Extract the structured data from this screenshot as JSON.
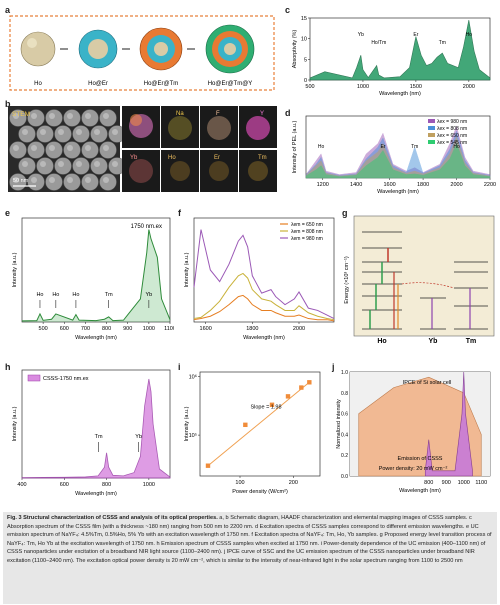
{
  "figure": {
    "a": {
      "label": "a",
      "items": [
        "Ho",
        "Ho@Er",
        "Ho@Er@Tm",
        "Ho@Er@Tm@Y"
      ]
    },
    "b": {
      "label": "b",
      "stem": "STEM",
      "scale": "50 nm",
      "elements": [
        "Na",
        "F",
        "Y",
        "Yb",
        "Ho",
        "Er",
        "Tm"
      ]
    },
    "c": {
      "label": "c",
      "peaks": [
        "Yb",
        "Ho/Tm",
        "Er",
        "Tm",
        "Ho"
      ]
    },
    "d": {
      "label": "d",
      "legend": [
        "λex = 980 nm",
        "λex = 808 nm",
        "λex = 650 nm",
        "λex = 545 nm"
      ],
      "peaks": [
        "Ho",
        "Er",
        "Tm",
        "Ho"
      ]
    },
    "e": {
      "label": "e",
      "annotation": "1750 nm.ex",
      "peaks": [
        "Ho",
        "Ho",
        "Ho",
        "Tm",
        "Yb"
      ]
    },
    "f": {
      "label": "f",
      "legend": [
        "λem = 650 nm",
        "λem = 808 nm",
        "λem = 980 nm"
      ]
    },
    "g": {
      "label": "g",
      "ions": [
        "Ho",
        "Yb",
        "Tm"
      ]
    },
    "h": {
      "label": "h",
      "legend": "CSSS-1750 nm.ex",
      "peaks": [
        "Tm",
        "Yb"
      ]
    },
    "i": {
      "label": "i",
      "slope": "Slope = 1.98"
    },
    "j": {
      "label": "j",
      "ipce": "IPCE of Si solar cell",
      "emission": "Emission of CSSS",
      "power": "Power density: 20 mW cm⁻²"
    }
  },
  "chart_data": [
    {
      "type": "area",
      "panel": "c",
      "xlabel": "Wavelength (nm)",
      "ylabel": "Absorptivity (%)",
      "xlim": [
        500,
        2200
      ],
      "ylim": [
        0,
        15
      ],
      "xticks": [
        "500",
        "1000",
        "1500",
        "2000"
      ],
      "yticks": [
        "0",
        "5",
        "10",
        "15"
      ],
      "x": [
        500,
        640,
        900,
        940,
        980,
        1000,
        1050,
        1130,
        1150,
        1200,
        1350,
        1440,
        1500,
        1550,
        1600,
        1650,
        1700,
        1750,
        1800,
        1900,
        1950,
        2000,
        2050,
        2100,
        2200
      ],
      "values": [
        0.5,
        2.0,
        0.5,
        3.0,
        6.0,
        2.5,
        0.6,
        3.5,
        1.2,
        0.5,
        0.8,
        3.0,
        10.5,
        6.0,
        3.5,
        4.0,
        5.5,
        6.5,
        4.0,
        3.0,
        8.0,
        14.5,
        7.0,
        2.5,
        0.5
      ]
    },
    {
      "type": "line",
      "panel": "d",
      "xlabel": "Wavelength (nm)",
      "ylabel": "Intensity of PEL (a.u.)",
      "xlim": [
        1100,
        2200
      ],
      "xticks": [
        "1200",
        "1400",
        "1600",
        "1800",
        "2000",
        "2200"
      ],
      "x": [
        1100,
        1160,
        1190,
        1220,
        1300,
        1400,
        1460,
        1530,
        1560,
        1620,
        1700,
        1750,
        1800,
        1900,
        1960,
        2000,
        2050,
        2100,
        2200
      ],
      "series": [
        {
          "name": "λex = 980 nm",
          "values": [
            0.5,
            2.5,
            3.5,
            1.0,
            0.5,
            0.8,
            3.5,
            5.0,
            6.5,
            2.0,
            1.0,
            1.5,
            0.8,
            2.0,
            5.0,
            7.5,
            3.0,
            1.0,
            0.5
          ]
        },
        {
          "name": "λex = 808 nm",
          "values": [
            0.5,
            2.0,
            3.0,
            0.8,
            0.4,
            0.6,
            2.8,
            4.5,
            5.8,
            1.8,
            0.8,
            4.5,
            0.7,
            1.8,
            4.2,
            6.8,
            2.6,
            0.8,
            0.4
          ]
        },
        {
          "name": "λex = 650 nm",
          "values": [
            0.4,
            1.8,
            2.5,
            0.7,
            0.3,
            0.5,
            2.5,
            3.8,
            5.0,
            1.5,
            0.7,
            1.0,
            0.6,
            1.5,
            3.6,
            6.0,
            2.2,
            0.7,
            0.3
          ]
        },
        {
          "name": "λex = 545 nm",
          "values": [
            0.3,
            1.2,
            1.8,
            0.5,
            0.2,
            0.4,
            1.8,
            3.0,
            4.0,
            1.2,
            0.5,
            0.6,
            0.4,
            1.2,
            2.8,
            5.0,
            1.8,
            0.5,
            0.2
          ]
        }
      ]
    },
    {
      "type": "line",
      "panel": "e",
      "xlabel": "Wavelength (nm)",
      "ylabel": "Intensity (a.u.)",
      "xlim": [
        400,
        1100
      ],
      "xticks": [
        "500",
        "600",
        "700",
        "800",
        "900",
        "1000",
        "1100"
      ],
      "x": [
        400,
        470,
        485,
        500,
        540,
        560,
        640,
        655,
        670,
        750,
        790,
        810,
        830,
        880,
        960,
        990,
        1000,
        1010,
        1040,
        1060,
        1100
      ],
      "values": [
        0.5,
        0.6,
        3.5,
        0.7,
        1.2,
        3.5,
        0.8,
        3.2,
        0.8,
        0.6,
        1.2,
        2.2,
        0.6,
        0.8,
        10,
        30,
        40,
        36,
        28,
        10,
        1
      ]
    },
    {
      "type": "line",
      "panel": "f",
      "xlabel": "Wavelength (nm)",
      "ylabel": "Intensity (a.u.)",
      "xlim": [
        1550,
        2150
      ],
      "xticks": [
        "1600",
        "1800",
        "2000"
      ],
      "x": [
        1550,
        1580,
        1620,
        1660,
        1700,
        1740,
        1760,
        1780,
        1800,
        1840,
        1880,
        1900,
        1940,
        1980,
        2000,
        2040,
        2080,
        2120,
        2150
      ],
      "series": [
        {
          "name": "λem = 650 nm",
          "values": [
            0.2,
            0.3,
            0.5,
            0.9,
            1.5,
            2.2,
            2.3,
            2.0,
            1.5,
            1.0,
            1.0,
            0.8,
            0.5,
            0.5,
            0.6,
            0.3,
            0.2,
            0.2,
            0.1
          ]
        },
        {
          "name": "λem = 808 nm",
          "values": [
            0.3,
            0.4,
            1.0,
            1.8,
            3.0,
            4.0,
            4.2,
            3.8,
            2.8,
            2.0,
            1.8,
            1.5,
            1.0,
            1.0,
            1.4,
            0.8,
            0.5,
            0.3,
            0.2
          ]
        },
        {
          "name": "λem = 980 nm",
          "values": [
            3.0,
            8.0,
            4.5,
            3.5,
            5.0,
            7.0,
            7.5,
            6.5,
            4.0,
            2.5,
            2.8,
            2.2,
            1.5,
            2.0,
            2.6,
            1.2,
            1.0,
            0.6,
            0.3
          ]
        }
      ]
    },
    {
      "type": "area",
      "panel": "h",
      "xlabel": "Wavelength (nm)",
      "ylabel": "Intensity (a.u.)",
      "xlim": [
        400,
        1100
      ],
      "xticks": [
        "400",
        "600",
        "800",
        "1000"
      ],
      "x": [
        400,
        500,
        600,
        700,
        760,
        790,
        800,
        810,
        830,
        880,
        930,
        960,
        980,
        1000,
        1010,
        1020,
        1050,
        1100
      ],
      "values": [
        0.2,
        0.3,
        0.4,
        0.6,
        1.2,
        6.0,
        14,
        6.0,
        1.5,
        1.2,
        3.0,
        12,
        40,
        55,
        48,
        30,
        5,
        0.5
      ]
    },
    {
      "type": "scatter",
      "panel": "i",
      "xlabel": "Power density (W/cm²)",
      "ylabel": "Intensity (a.u.)",
      "xlim": [
        25,
        250
      ],
      "yscale": "log",
      "xticks": [
        "100",
        "200"
      ],
      "yticks": [
        "10⁵",
        "10⁶"
      ],
      "x": [
        40,
        110,
        160,
        190,
        215,
        230
      ],
      "values": [
        30000,
        150000,
        330000,
        460000,
        650000,
        800000
      ]
    },
    {
      "type": "area",
      "panel": "j",
      "xlabel": "Wavelength (nm)",
      "ylabel": "Normalized intensity",
      "xticks": [
        "800",
        "900",
        "1000",
        "1100"
      ],
      "yticks": [
        "0.0",
        "0.2",
        "0.4",
        "0.6",
        "0.8",
        "1.0"
      ],
      "series": [
        {
          "name": "IPCE of Si solar cell",
          "x": [
            400,
            600,
            800,
            1000,
            1100
          ],
          "values": [
            0.6,
            0.85,
            0.95,
            0.8,
            0.4
          ]
        },
        {
          "name": "Emission of CSSS",
          "x": [
            780,
            800,
            820,
            950,
            990,
            1000,
            1010,
            1050
          ],
          "values": [
            0.05,
            0.35,
            0.05,
            0.05,
            0.6,
            1.0,
            0.6,
            0.05
          ]
        }
      ]
    }
  ],
  "caption": {
    "lead": "Fig. 3 Structural characterization of CSSS and analysis of its optical properties.",
    "body": " a, b Schematic diagram, HAADF characterization and elemental mapping images of CSSS samples. c Absorption spectrum of the CSSS film (with a thickness ~180 nm) ranging from 500 nm to 2200 nm. d Excitation spectra of CSSS samples correspond to different emission wavelengths. e UC emission spectrum of NaYF₄: 4.5%Tm, 0.5%Ho, 5% Yb with an excitation wavelength of 1750 nm. f Excitation spectra of NaYF₄: Tm, Ho, Yb samples. g Proposed energy level transition process of NaYF₄: Tm, Ho Yb at the excitation wavelength of 1750 nm. h Emission spectrum of CSSS samples when excited at 1750 nm. i Power-density dependence of the UC emission (400–1100 nm) of CSSS nanoparticles under excitation of a broadband NIR light source (1100–2400 nm). j IPCE curve of SSC and the UC emission spectrum of the CSSS nanoparticles under broadband NIR excitation (1100–2400 nm). The excitation optical power density is 20 mW cm⁻², which is similar to the intensity of near-infrared light in the solar spectrum ranging from 1100 to 2500 nm"
  }
}
